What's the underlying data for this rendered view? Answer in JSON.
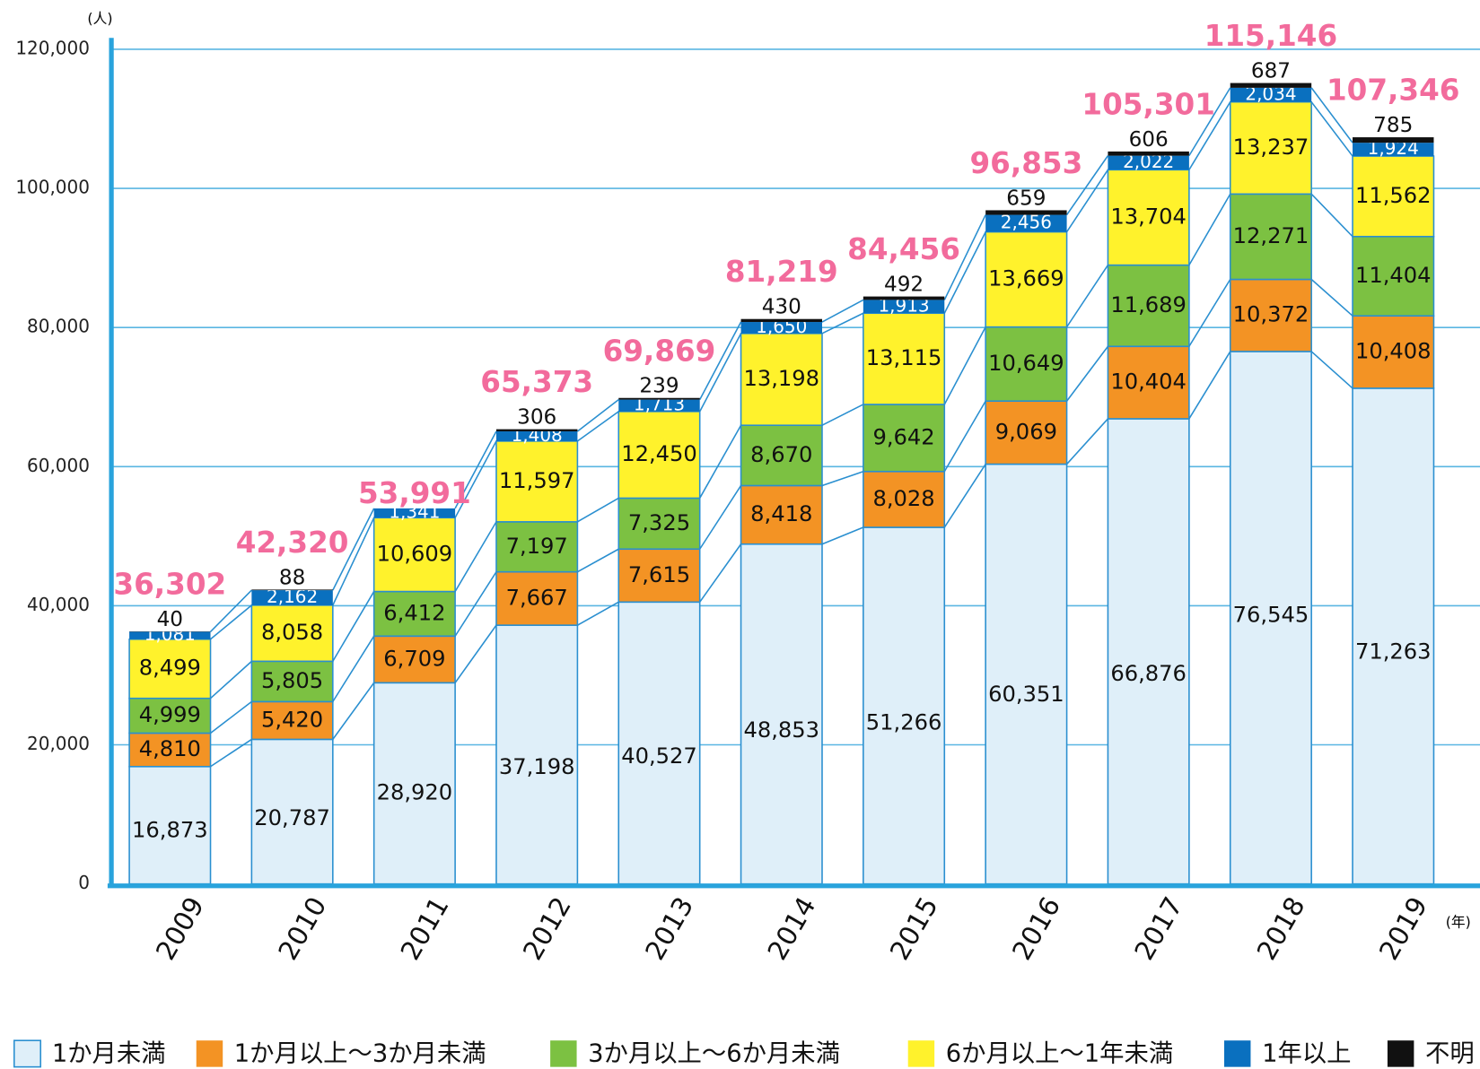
{
  "chart_data": {
    "type": "stacked_bar",
    "y_unit": "(人)",
    "x_unit": "(年)",
    "categories": [
      "2009",
      "2010",
      "2011",
      "2012",
      "2013",
      "2014",
      "2015",
      "2016",
      "2017",
      "2018",
      "2019"
    ],
    "series": [
      {
        "name": "1か月未満",
        "color": "#dfeff9",
        "values": [
          16873,
          20787,
          28920,
          37198,
          40527,
          48853,
          51266,
          60351,
          66876,
          76545,
          71263
        ],
        "value_labels": [
          "16,873",
          "20,787",
          "28,920",
          "37,198",
          "40,527",
          "48,853",
          "51,266",
          "60,351",
          "66,876",
          "76,545",
          "71,263"
        ]
      },
      {
        "name": "1か月以上～3か月未満",
        "color": "#f39324",
        "values": [
          4810,
          5420,
          6709,
          7667,
          7615,
          8418,
          8028,
          9069,
          10404,
          10372,
          10408
        ],
        "value_labels": [
          "4,810",
          "5,420",
          "6,709",
          "7,667",
          "7,615",
          "8,418",
          "8,028",
          "9,069",
          "10,404",
          "10,372",
          "10,408"
        ]
      },
      {
        "name": "3か月以上～6か月未満",
        "color": "#7cc142",
        "values": [
          4999,
          5805,
          6412,
          7197,
          7325,
          8670,
          9642,
          10649,
          11689,
          12271,
          11404
        ],
        "value_labels": [
          "4,999",
          "5,805",
          "6,412",
          "7,197",
          "7,325",
          "8,670",
          "9,642",
          "10,649",
          "11,689",
          "12,271",
          "11,404"
        ]
      },
      {
        "name": "6か月以上～1年未満",
        "color": "#fff22c",
        "values": [
          8499,
          8058,
          10609,
          11597,
          12450,
          13198,
          13115,
          13669,
          13704,
          13237,
          11562
        ],
        "value_labels": [
          "8,499",
          "8,058",
          "10,609",
          "11,597",
          "12,450",
          "13,198",
          "13,115",
          "13,669",
          "13,704",
          "13,237",
          "11,562"
        ]
      },
      {
        "name": "1年以上",
        "color": "#0a70bf",
        "values": [
          1081,
          2162,
          1341,
          1408,
          1713,
          1650,
          1913,
          2456,
          2022,
          2034,
          1924
        ],
        "value_labels": [
          "1,081",
          "2,162",
          "1,341",
          "1,408",
          "1,713",
          "1,650",
          "1,913",
          "2,456",
          "2,022",
          "2,034",
          "1,924"
        ]
      },
      {
        "name": "不明",
        "color": "#111111",
        "values": [
          40,
          88,
          null,
          306,
          239,
          430,
          492,
          659,
          606,
          687,
          785
        ]
      }
    ],
    "totals": {
      "color": "#f26b9c",
      "values": [
        36302,
        42320,
        53991,
        65373,
        69869,
        81219,
        84456,
        96853,
        105301,
        115146,
        107346
      ],
      "value_labels": [
        "36,302",
        "42,320",
        "53,991",
        "65,373",
        "69,869",
        "81,219",
        "84,456",
        "96,853",
        "105,301",
        "115,146",
        "107,346"
      ]
    },
    "ylim": [
      0,
      120000
    ],
    "yticks": [
      0,
      {
        "value": 20000,
        "label": "20,000"
      },
      {
        "value": 40000,
        "label": "40,000"
      },
      {
        "value": 60000,
        "label": "60,000"
      },
      {
        "value": 80000,
        "label": "80,000"
      },
      {
        "value": 100000,
        "label": "100,000"
      },
      {
        "value": 120000,
        "label": "120,000"
      }
    ],
    "grid": true
  }
}
